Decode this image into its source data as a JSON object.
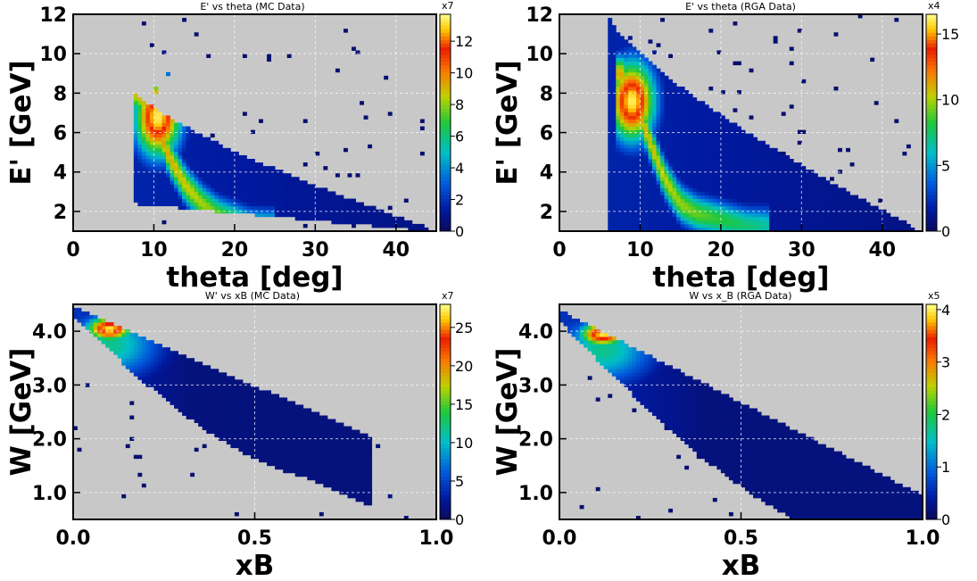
{
  "chart_data": [
    {
      "type": "heatmap",
      "title": "E' vs theta (MC Data)",
      "xlabel": "theta [deg]",
      "ylabel": "E'  [GeV]",
      "xlim": [
        0,
        45
      ],
      "ylim": [
        1,
        12
      ],
      "xticks": [
        "0",
        "10",
        "20",
        "30",
        "40"
      ],
      "yticks": [
        "2",
        "4",
        "6",
        "8",
        "10",
        "12"
      ],
      "colorbar": {
        "multiplier": "x7",
        "ticks": [
          "0",
          "2",
          "4",
          "6",
          "8",
          "10",
          "12"
        ],
        "max": 13.7
      },
      "grid": true,
      "background": "#c8c8c8",
      "band": {
        "kind": "curve",
        "x": [
          7.8,
          9,
          10.5,
          12,
          14,
          16,
          18,
          20,
          22
        ],
        "y": [
          8.0,
          7.6,
          6.2,
          4.7,
          3.3,
          2.4,
          1.8,
          1.5,
          1.2
        ],
        "peak": [
          10.5,
          6.8
        ],
        "peak_value": 13.5
      },
      "spread": {
        "x": [
          7.5,
          44
        ],
        "upper_y": [
          8.2,
          1.2
        ],
        "lower_y": [
          2.4,
          1.0
        ]
      }
    },
    {
      "type": "heatmap",
      "title": "E' vs theta  (RGA Data)",
      "xlabel": "theta [deg]",
      "ylabel": "E'  [GeV]",
      "xlim": [
        0,
        45
      ],
      "ylim": [
        1,
        12
      ],
      "xticks": [
        "0",
        "10",
        "20",
        "30",
        "40"
      ],
      "yticks": [
        "2",
        "4",
        "6",
        "8",
        "10",
        "12"
      ],
      "colorbar": {
        "multiplier": "x4",
        "ticks": [
          "0",
          "5",
          "10",
          "15"
        ],
        "max": 16.5
      },
      "grid": true,
      "background": "#c8c8c8",
      "band": {
        "kind": "curve",
        "x": [
          7.7,
          9,
          11,
          13,
          15,
          17,
          19,
          21,
          23
        ],
        "y": [
          9.0,
          8.0,
          5.8,
          3.7,
          2.4,
          1.9,
          1.7,
          1.5,
          1.3
        ],
        "peak": [
          9.0,
          7.6
        ],
        "peak_value": 16
      },
      "spread": {
        "x": [
          6,
          44
        ],
        "upper_y": [
          12,
          1.2
        ],
        "lower_y": [
          1.0,
          1.0
        ]
      }
    },
    {
      "type": "heatmap",
      "title": "W' vs xB (MC Data)",
      "xlabel": "xB",
      "ylabel": "W  [GeV]",
      "xlim": [
        0,
        1.0
      ],
      "ylim": [
        0.5,
        4.5
      ],
      "xticks": [
        "0.0",
        "0.5",
        "1.0"
      ],
      "yticks": [
        "1.0",
        "2.0",
        "3.0",
        "4.0"
      ],
      "colorbar": {
        "multiplier": "x7",
        "ticks": [
          "0",
          "5",
          "10",
          "15",
          "20",
          "25"
        ],
        "max": 28
      },
      "grid": true,
      "background": "#c8c8c8",
      "band": {
        "kind": "diag",
        "x": [
          0.0,
          0.8
        ],
        "upper_y": [
          4.45,
          2.1
        ],
        "lower_y": [
          4.35,
          1.9
        ],
        "peak": [
          0.1,
          4.05
        ],
        "peak_value": 27
      }
    },
    {
      "type": "heatmap",
      "title": "W vs x_B  (RGA Data)",
      "xlabel": "xB",
      "ylabel": "W  [GeV]",
      "xlim": [
        0,
        1.0
      ],
      "ylim": [
        0.5,
        4.5
      ],
      "xticks": [
        "0.0",
        "0.5",
        "1.0"
      ],
      "yticks": [
        "1.0",
        "2.0",
        "3.0",
        "4.0"
      ],
      "colorbar": {
        "multiplier": "x5",
        "ticks": [
          "0",
          "1",
          "2",
          "3",
          "4"
        ],
        "max": 4.1
      },
      "grid": true,
      "background": "#c8c8c8",
      "band": {
        "kind": "diag",
        "x": [
          0.0,
          1.0
        ],
        "upper_y": [
          4.4,
          0.95
        ],
        "lower_y": [
          4.3,
          0.9
        ],
        "peak": [
          0.12,
          3.95
        ],
        "peak_value": 4.0
      }
    }
  ]
}
